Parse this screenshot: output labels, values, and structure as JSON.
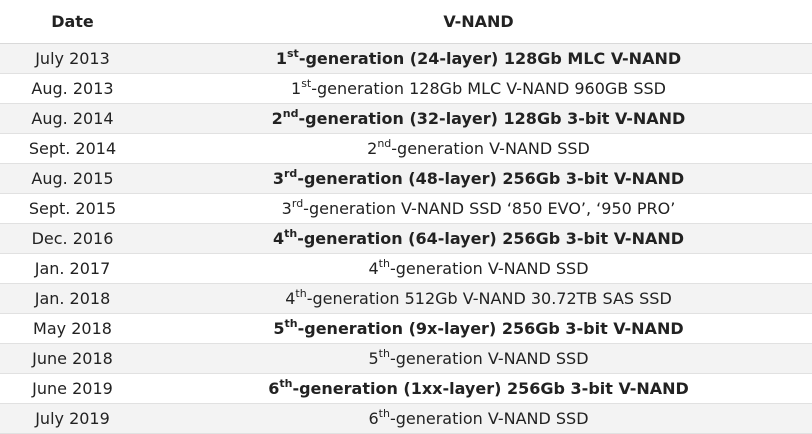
{
  "headers": {
    "date": "Date",
    "vnand": "V-NAND"
  },
  "rows": [
    {
      "date": "July 2013",
      "num": "1",
      "suffix": "st",
      "rest": "-generation (24-layer) 128Gb MLC V-NAND",
      "bold": true
    },
    {
      "date": "Aug. 2013",
      "num": "1",
      "suffix": "st",
      "rest": "-generation 128Gb MLC V-NAND 960GB SSD",
      "bold": false
    },
    {
      "date": "Aug. 2014",
      "num": "2",
      "suffix": "nd",
      "rest": "-generation (32-layer) 128Gb 3-bit V-NAND",
      "bold": true
    },
    {
      "date": "Sept. 2014",
      "num": "2",
      "suffix": "nd",
      "rest": "-generation V-NAND SSD",
      "bold": false
    },
    {
      "date": "Aug. 2015",
      "num": "3",
      "suffix": "rd",
      "rest": "-generation (48-layer) 256Gb 3-bit V-NAND",
      "bold": true
    },
    {
      "date": "Sept. 2015",
      "num": "3",
      "suffix": "rd",
      "rest": "-generation V-NAND SSD ‘850 EVO’, ‘950 PRO’",
      "bold": false
    },
    {
      "date": "Dec. 2016",
      "num": "4",
      "suffix": "th",
      "rest": "-generation (64-layer) 256Gb 3-bit V-NAND",
      "bold": true
    },
    {
      "date": "Jan. 2017",
      "num": "4",
      "suffix": "th",
      "rest": "-generation V-NAND SSD",
      "bold": false
    },
    {
      "date": "Jan. 2018",
      "num": "4",
      "suffix": "th",
      "rest": "-generation 512Gb V-NAND 30.72TB SAS SSD",
      "bold": false
    },
    {
      "date": "May 2018",
      "num": "5",
      "suffix": "th",
      "rest": "-generation (9x-layer) 256Gb 3-bit V-NAND",
      "bold": true
    },
    {
      "date": "June 2018",
      "num": "5",
      "suffix": "th",
      "rest": "-generation V-NAND SSD",
      "bold": false
    },
    {
      "date": "June 2019",
      "num": "6",
      "suffix": "th",
      "rest": "-generation (1xx-layer) 256Gb 3-bit V-NAND",
      "bold": true
    },
    {
      "date": "July 2019",
      "num": "6",
      "suffix": "th",
      "rest": "-generation V-NAND SSD",
      "bold": false
    }
  ]
}
